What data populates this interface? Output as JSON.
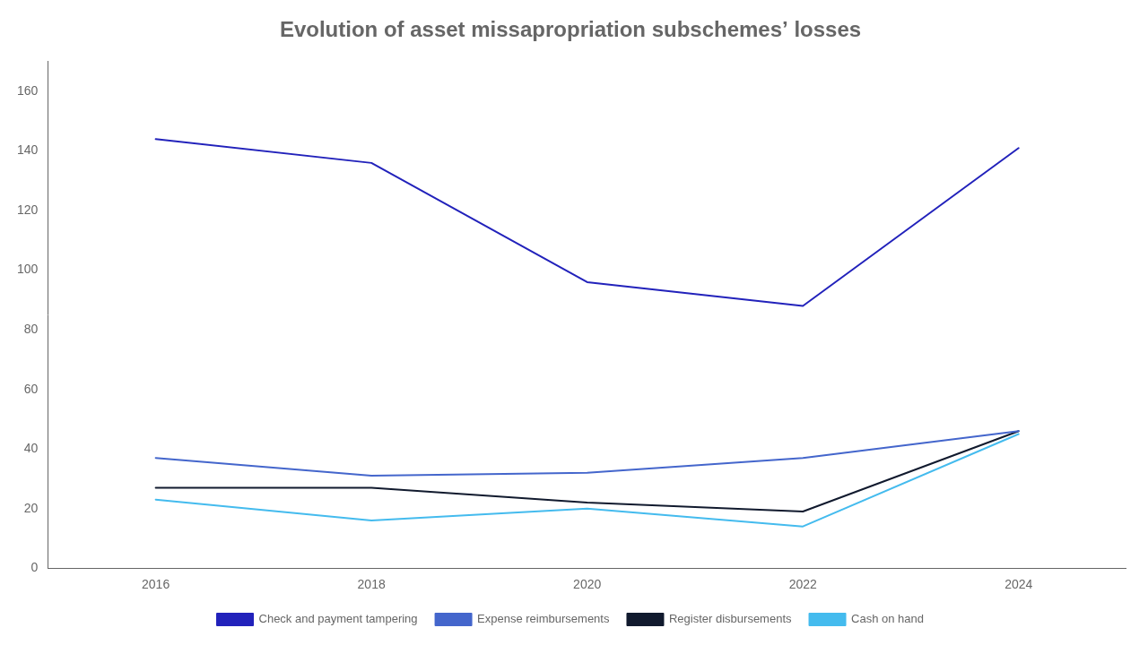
{
  "chart_data": {
    "type": "line",
    "title": "Evolution of asset missapropriation subschemes’ losses",
    "x": [
      2016,
      2018,
      2020,
      2022,
      2024
    ],
    "series": [
      {
        "name": "Check and payment tampering",
        "color": "#2222bb",
        "values": [
          144,
          136,
          96,
          88,
          141
        ]
      },
      {
        "name": "Expense reimbursements",
        "color": "#4466cc",
        "values": [
          37,
          31,
          32,
          37,
          46
        ]
      },
      {
        "name": "Register disbursements",
        "color": "#111a2e",
        "values": [
          27,
          27,
          22,
          19,
          46
        ]
      },
      {
        "name": "Cash on hand",
        "color": "#44bbee",
        "values": [
          23,
          16,
          20,
          14,
          45
        ]
      }
    ],
    "xlim": [
      2015,
      2025
    ],
    "xticks": [
      2016,
      2018,
      2020,
      2022,
      2024
    ],
    "ylim": [
      0,
      170
    ],
    "yticks": [
      0,
      20,
      40,
      60,
      80,
      100,
      120,
      140,
      160
    ],
    "grid": false,
    "legend": "bottom"
  }
}
